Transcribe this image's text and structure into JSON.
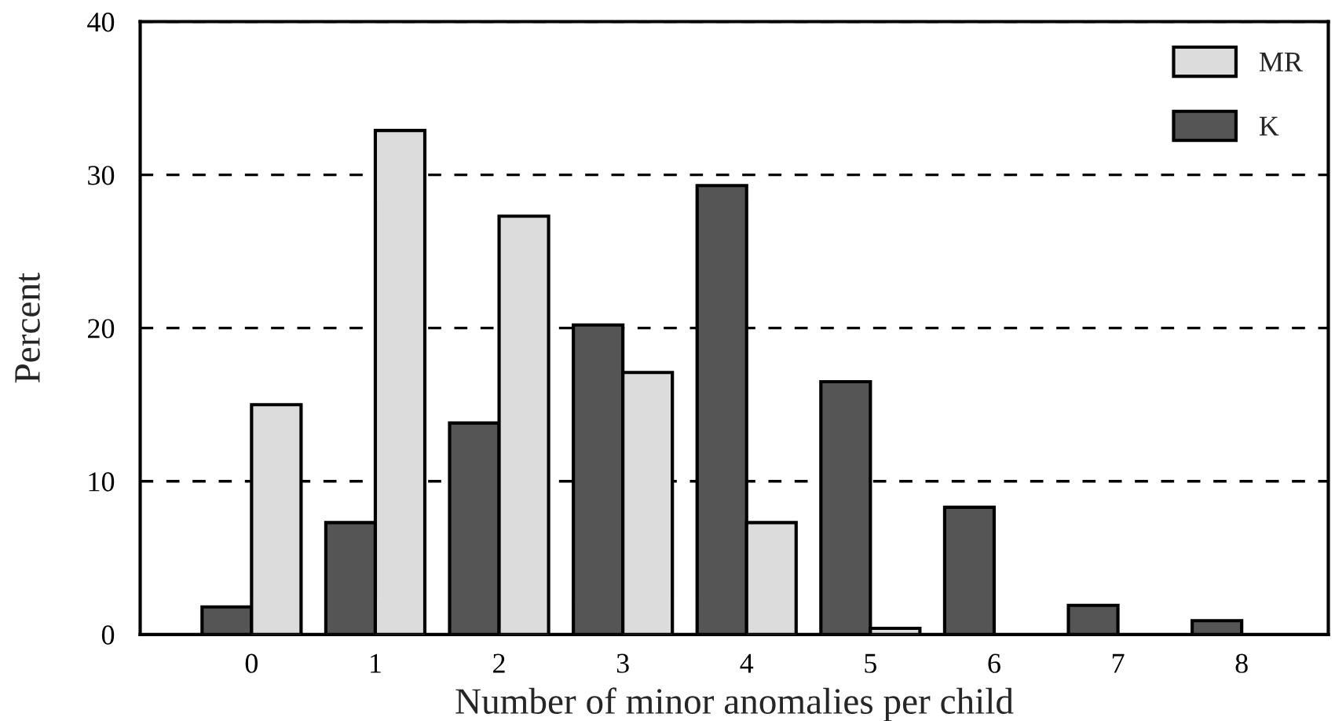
{
  "chart_data": {
    "type": "bar",
    "xlabel": "Number of minor anomalies per child",
    "ylabel": "Percent",
    "categories": [
      "0",
      "1",
      "2",
      "3",
      "4",
      "5",
      "6",
      "7",
      "8"
    ],
    "series": [
      {
        "name": "K",
        "color": "#555555",
        "values": [
          1.8,
          7.3,
          13.8,
          20.2,
          29.3,
          16.5,
          8.3,
          1.9,
          0.9
        ]
      },
      {
        "name": "MR",
        "color": "#dcdcdc",
        "values": [
          15.0,
          32.9,
          27.3,
          17.1,
          7.3,
          0.4,
          null,
          null,
          null
        ]
      }
    ],
    "ylim": [
      0,
      40
    ],
    "yticks": [
      0,
      10,
      20,
      30,
      40
    ],
    "grid": "y",
    "legend": "top right"
  }
}
